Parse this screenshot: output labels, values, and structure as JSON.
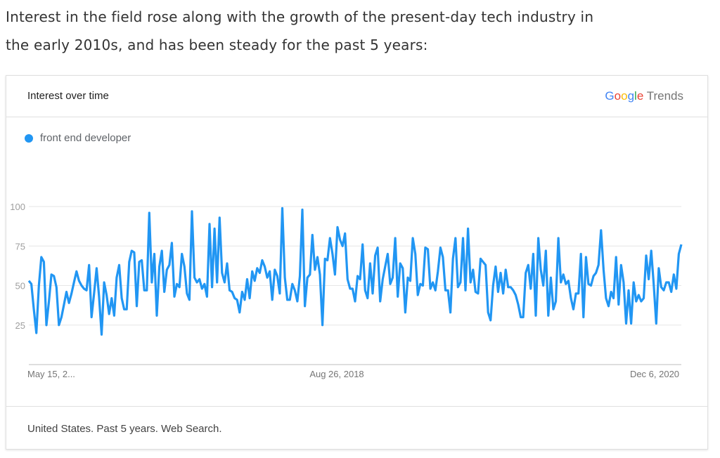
{
  "intro": {
    "line1": "Interest in the field rose along with the growth of the present-day tech industry in",
    "line2": "the early 2010s, and has been steady for the past 5 years:"
  },
  "card": {
    "title": "Interest over time",
    "brand": {
      "google": [
        "G",
        "o",
        "o",
        "g",
        "l",
        "e"
      ],
      "trends": "Trends",
      "colors": [
        "#4285F4",
        "#EA4335",
        "#FBBC05",
        "#4285F4",
        "#34A853",
        "#EA4335"
      ]
    },
    "footer": "United States. Past 5 years. Web Search."
  },
  "chart_data": {
    "type": "line",
    "title": "Interest over time",
    "series": [
      {
        "name": "front end developer",
        "color": "#2196F3",
        "values": [
          53,
          51,
          35,
          20,
          50,
          68,
          65,
          25,
          40,
          57,
          56,
          49,
          25,
          30,
          38,
          46,
          39,
          45,
          52,
          59,
          53,
          50,
          48,
          47,
          63,
          30,
          45,
          61,
          43,
          19,
          52,
          44,
          32,
          42,
          31,
          55,
          63,
          42,
          35,
          35,
          65,
          72,
          71,
          37,
          65,
          66,
          47,
          47,
          96,
          52,
          70,
          31,
          62,
          72,
          46,
          60,
          63,
          77,
          43,
          51,
          49,
          70,
          62,
          45,
          41,
          97,
          55,
          52,
          54,
          48,
          51,
          43,
          89,
          49,
          86,
          52,
          93,
          58,
          52,
          64,
          47,
          46,
          42,
          41,
          33,
          46,
          41,
          54,
          42,
          59,
          53,
          61,
          58,
          66,
          62,
          55,
          59,
          41,
          60,
          56,
          45,
          99,
          55,
          41,
          41,
          51,
          47,
          40,
          56,
          98,
          37,
          55,
          57,
          82,
          60,
          68,
          57,
          25,
          67,
          66,
          80,
          70,
          57,
          87,
          79,
          75,
          83,
          54,
          48,
          48,
          40,
          56,
          54,
          76,
          47,
          42,
          64,
          45,
          69,
          74,
          40,
          54,
          62,
          70,
          51,
          55,
          80,
          43,
          64,
          61,
          33,
          55,
          53,
          80,
          70,
          44,
          51,
          50,
          74,
          73,
          48,
          52,
          47,
          59,
          74,
          68,
          47,
          47,
          33,
          67,
          80,
          49,
          52,
          80,
          47,
          86,
          52,
          60,
          46,
          45,
          67,
          65,
          63,
          33,
          28,
          50,
          62,
          46,
          58,
          45,
          60,
          49,
          49,
          47,
          44,
          38,
          30,
          30,
          58,
          63,
          48,
          70,
          31,
          80,
          60,
          50,
          72,
          31,
          55,
          35,
          40,
          80,
          52,
          57,
          51,
          53,
          42,
          35,
          45,
          45,
          70,
          30,
          68,
          51,
          50,
          56,
          58,
          63,
          85,
          60,
          42,
          37,
          46,
          42,
          68,
          38,
          63,
          52,
          26,
          47,
          26,
          52,
          40,
          44,
          40,
          42,
          69,
          54,
          72,
          51,
          26,
          61,
          49,
          47,
          52,
          52,
          46,
          57,
          48,
          70,
          76
        ]
      }
    ],
    "x_tick_labels": [
      "May 15, 2...",
      "Aug 26, 2018",
      "Dec 6, 2020"
    ],
    "y_ticks": [
      25,
      50,
      75,
      100
    ],
    "ylim": [
      0,
      100
    ],
    "xlabel": "",
    "ylabel": "",
    "grid": true,
    "legend": "top-left"
  }
}
